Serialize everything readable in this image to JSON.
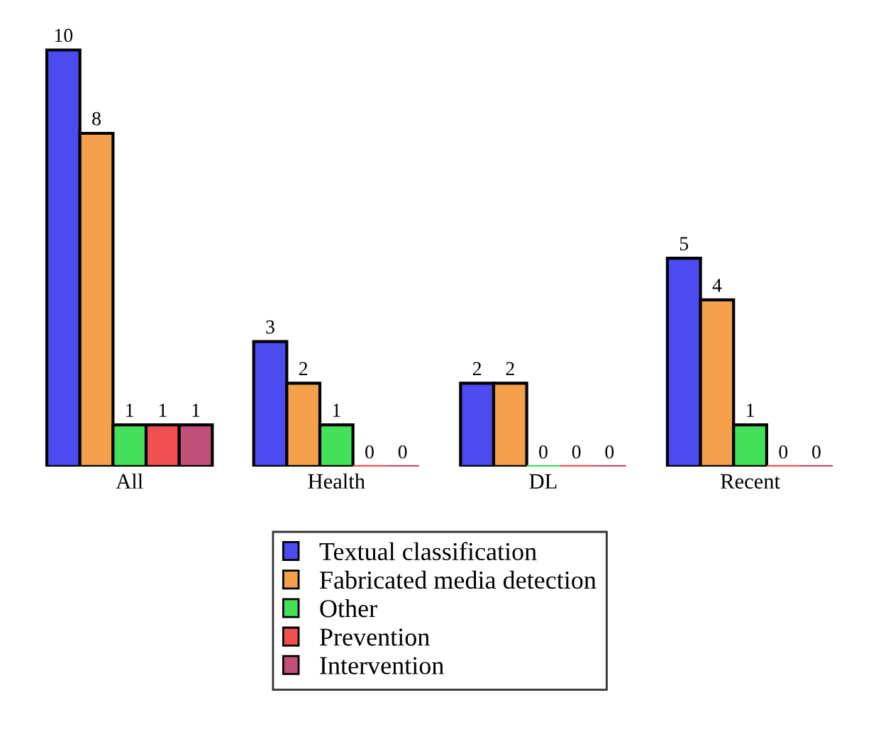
{
  "chart_data": {
    "type": "bar",
    "categories": [
      "All",
      "Health",
      "DL",
      "Recent"
    ],
    "series": [
      {
        "name": "Textual classification",
        "color": "#4b4bf0",
        "values": [
          10,
          3,
          2,
          5
        ]
      },
      {
        "name": "Fabricated media detection",
        "color": "#f5a04a",
        "values": [
          8,
          2,
          2,
          4
        ]
      },
      {
        "name": "Other",
        "color": "#44e05a",
        "values": [
          1,
          1,
          0,
          1
        ]
      },
      {
        "name": "Prevention",
        "color": "#f05050",
        "values": [
          1,
          0,
          0,
          0
        ]
      },
      {
        "name": "Intervention",
        "color": "#c0507a",
        "values": [
          1,
          0,
          0,
          0
        ]
      }
    ],
    "data_labels": true,
    "legend": "bottom",
    "grid": false
  }
}
